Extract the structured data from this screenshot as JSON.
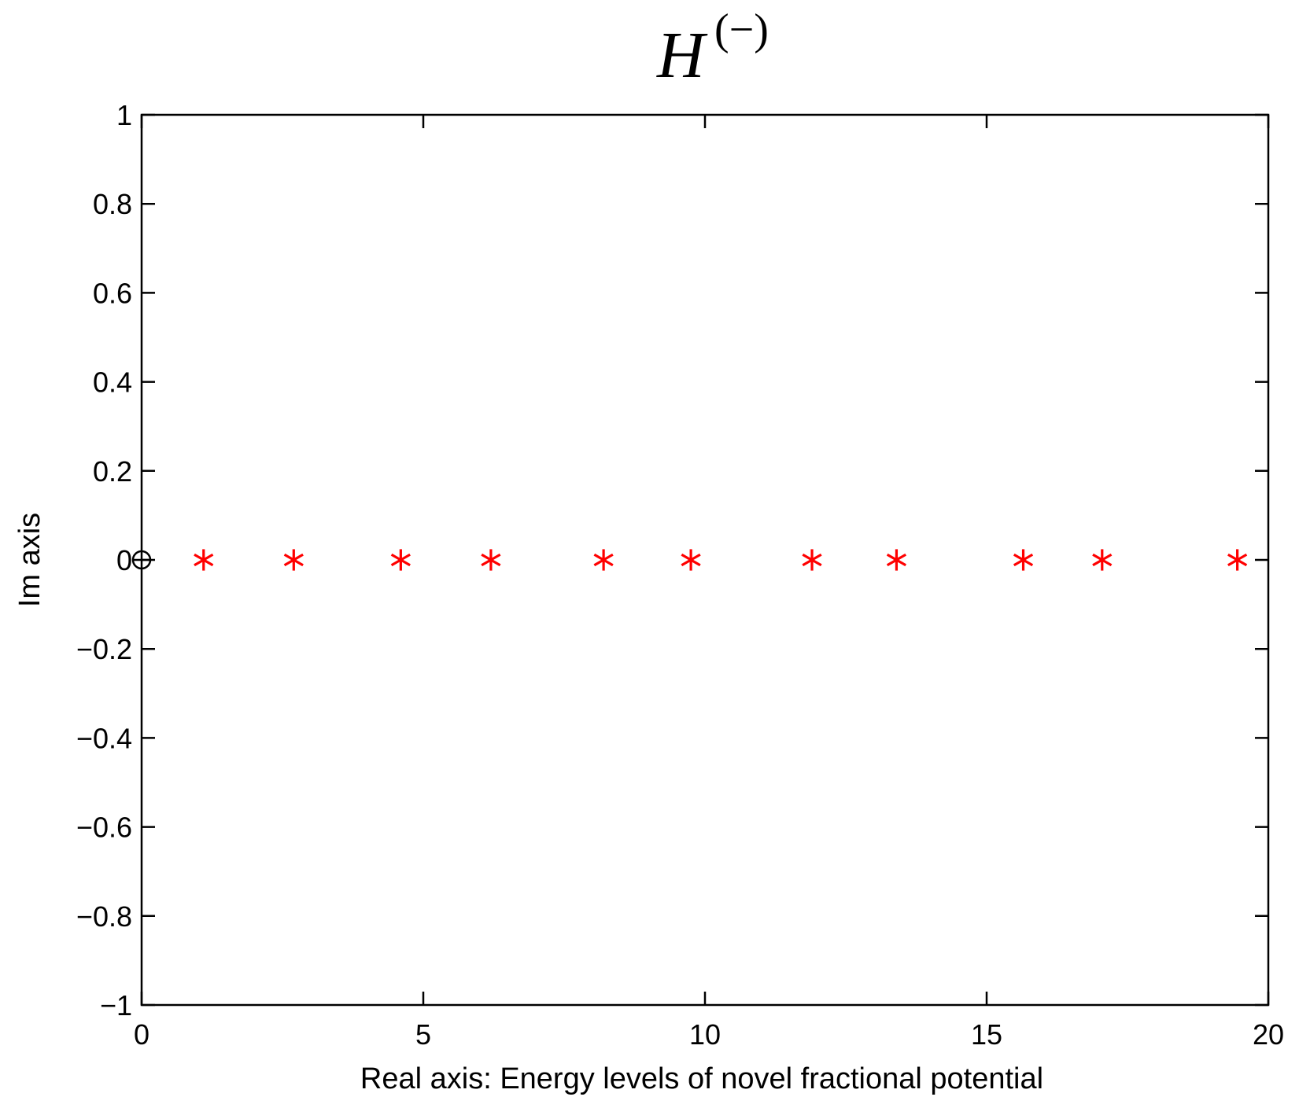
{
  "chart_data": {
    "type": "scatter",
    "title": {
      "base": "H",
      "superscript": "(−)"
    },
    "xlabel": "Real axis: Energy levels of novel  fractional potential",
    "ylabel": "Im axis",
    "xlim": [
      0,
      20
    ],
    "ylim": [
      -1,
      1
    ],
    "xticks": [
      0,
      5,
      10,
      15,
      20
    ],
    "xtick_labels": [
      "0",
      "5",
      "10",
      "15",
      "20"
    ],
    "yticks": [
      1,
      0.8,
      0.6,
      0.4,
      0.2,
      0,
      -0.2,
      -0.4,
      -0.6,
      -0.8,
      -1
    ],
    "ytick_labels": [
      "1",
      "0.8",
      "0.6",
      "0.4",
      "0.2",
      "0",
      "−0.2",
      "−0.4",
      "−0.6",
      "−0.8",
      "−1"
    ],
    "grid": false,
    "series": [
      {
        "marker": "asterisk",
        "color": "#ff0000",
        "x": [
          1.1,
          2.7,
          4.6,
          6.2,
          8.2,
          9.75,
          11.9,
          13.4,
          15.65,
          17.05,
          19.45
        ],
        "y": [
          0,
          0,
          0,
          0,
          0,
          0,
          0,
          0,
          0,
          0,
          0
        ]
      },
      {
        "marker": "circle-plus",
        "color": "#000000",
        "x": [
          0
        ],
        "y": [
          0
        ]
      }
    ]
  }
}
